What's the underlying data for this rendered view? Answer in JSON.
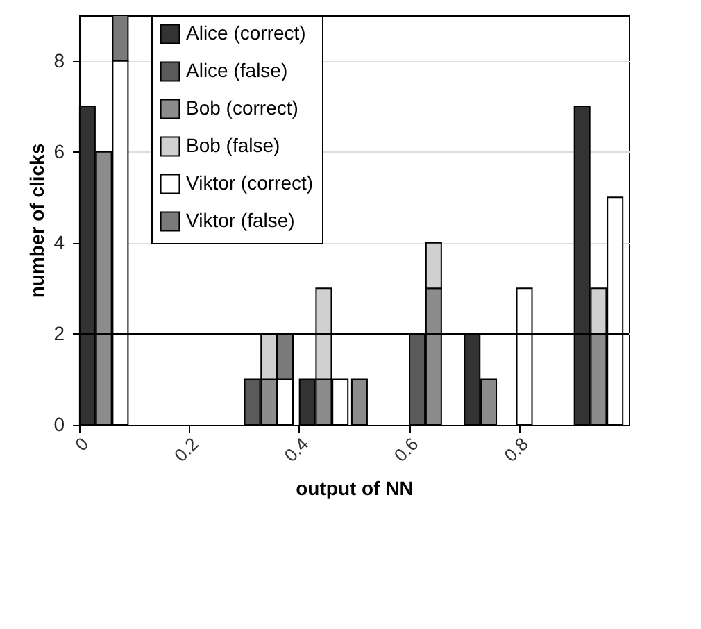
{
  "chart_data": {
    "type": "bar",
    "xlabel": "output of NN",
    "ylabel": "number of clicks",
    "stacked": true,
    "xlim": [
      0,
      1
    ],
    "xticks": [
      0,
      0.2,
      0.4,
      0.6,
      0.8
    ],
    "ylim": [
      0,
      9
    ],
    "yticks": [
      0,
      2,
      4,
      6,
      8
    ],
    "grid": "y",
    "legend": "top left",
    "ref_lines": [
      {
        "axis": "y",
        "value": 2,
        "color": "#000000"
      }
    ],
    "x": [
      0.015,
      0.045,
      0.075,
      0.315,
      0.345,
      0.375,
      0.415,
      0.445,
      0.475,
      0.51,
      0.615,
      0.645,
      0.715,
      0.745,
      0.81,
      0.915,
      0.945,
      0.975
    ],
    "series": [
      {
        "name": "Alice (correct)",
        "color": "#333333",
        "values": [
          7,
          null,
          null,
          null,
          null,
          null,
          1,
          null,
          null,
          null,
          null,
          null,
          2,
          null,
          null,
          7,
          null,
          null
        ]
      },
      {
        "name": "Alice (false)",
        "color": "#5a5a5a",
        "values": [
          null,
          null,
          null,
          1,
          null,
          null,
          null,
          null,
          null,
          null,
          2,
          null,
          null,
          null,
          null,
          null,
          null,
          null
        ]
      },
      {
        "name": "Bob (correct)",
        "color": "#8c8c8c",
        "values": [
          null,
          6,
          null,
          null,
          1,
          null,
          null,
          1,
          null,
          1,
          null,
          3,
          null,
          1,
          null,
          null,
          2,
          null
        ]
      },
      {
        "name": "Bob (false)",
        "color": "#d0d0d0",
        "values": [
          null,
          null,
          null,
          null,
          1,
          null,
          null,
          2,
          null,
          null,
          null,
          1,
          null,
          null,
          null,
          null,
          1,
          null
        ]
      },
      {
        "name": "Viktor (correct)",
        "color": "#ffffff",
        "values": [
          null,
          null,
          8,
          null,
          null,
          1,
          null,
          null,
          1,
          null,
          null,
          null,
          null,
          null,
          3,
          null,
          null,
          5
        ]
      },
      {
        "name": "Viktor (false)",
        "color": "#7a7a7a",
        "values": [
          null,
          null,
          1,
          null,
          null,
          1,
          null,
          null,
          null,
          null,
          null,
          null,
          null,
          null,
          null,
          null,
          null,
          null
        ]
      }
    ]
  }
}
